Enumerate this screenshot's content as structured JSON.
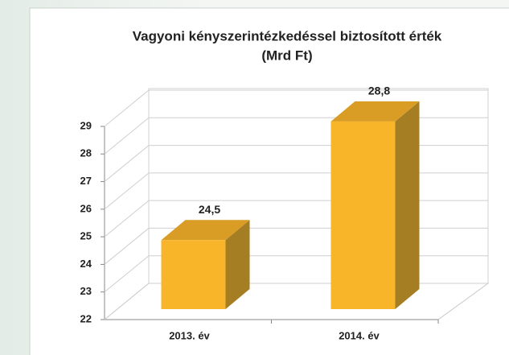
{
  "chart_data": {
    "type": "bar3d",
    "title": "Vagyoni kényszerintézkedéssel biztosított érték",
    "subtitle": "(Mrd Ft)",
    "categories": [
      "2013. év",
      "2014. év"
    ],
    "values": [
      24.5,
      28.8
    ],
    "value_labels": [
      "24,5",
      "28,8"
    ],
    "color": "#f9b52a",
    "ylim": [
      22,
      29
    ],
    "yticks": [
      22,
      23,
      24,
      25,
      26,
      27,
      28,
      29
    ],
    "grid": true
  }
}
